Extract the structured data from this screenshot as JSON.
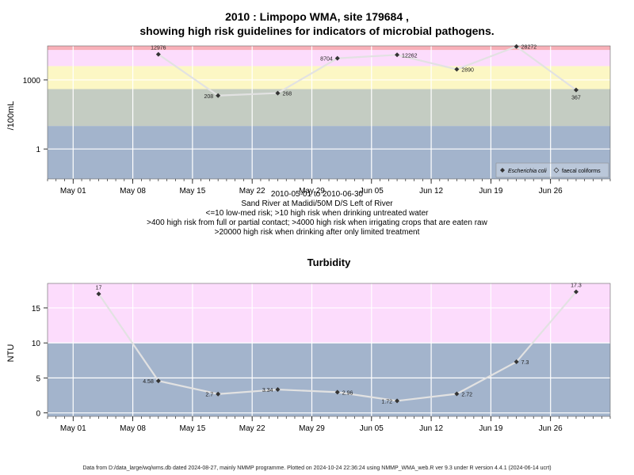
{
  "titles": {
    "line1": "2010 : Limpopo WMA, site 179684 ,",
    "line2": "showing high risk guidelines for indicators of microbial pathogens."
  },
  "subtitle": [
    "2010-05-01 to 2010-06-30",
    "Sand River at Madidi/50M D/S Left of River",
    "<=10 low-med risk; >10 high risk when drinking untreated water",
    ">400 high risk from full or partial contact; >4000 high risk when irrigating crops that are eaten raw",
    ">20000 high risk when drinking after only limited treatment"
  ],
  "footer": "Data from D:/data_large/wq/wms.db dated 2024-08-27, mainly NMMP programme. Plotted on 2024-10-24 22:36:24 using NMMP_WMA_web.R ver 9.3 under R version 4.4.1 (2024-06-14 ucrt)",
  "colors": {
    "lowband": "#a3b4cc",
    "greenband": "#c4ccc2",
    "yellowband": "#fcf7c4",
    "pinkband": "#fcdcfc",
    "redband": "#f8b0b8",
    "line": "#e2e2e2",
    "point": "#333333",
    "grid": "#ffffff"
  },
  "chart_data": [
    {
      "type": "line",
      "title": "",
      "ylabel": "/100mL",
      "yscale": "log10",
      "ylim": [
        0.05,
        30000
      ],
      "xlim": [
        "2010-04-28",
        "2010-07-03"
      ],
      "x_ticks": [
        "May 01",
        "May 08",
        "May 15",
        "May 22",
        "May 29",
        "Jun 05",
        "Jun 12",
        "Jun 19",
        "Jun 26"
      ],
      "x_tick_dates": [
        "2010-05-01",
        "2010-05-08",
        "2010-05-15",
        "2010-05-22",
        "2010-05-29",
        "2010-06-05",
        "2010-06-12",
        "2010-06-19",
        "2010-06-26"
      ],
      "y_ticks": [
        1,
        1000
      ],
      "y_tick_labels": [
        "1",
        "1000"
      ],
      "risk_bands": [
        {
          "from": 0.05,
          "to": 10,
          "color": "#a3b4cc"
        },
        {
          "from": 10,
          "to": 400,
          "color": "#c4ccc2"
        },
        {
          "from": 400,
          "to": 4000,
          "color": "#fcf7c4"
        },
        {
          "from": 4000,
          "to": 20000,
          "color": "#fcdcfc"
        },
        {
          "from": 20000,
          "to": 30000,
          "color": "#f8b0b8"
        }
      ],
      "legend": {
        "position": "bottom-right",
        "entries": [
          "Escherichia coli",
          "faecal coliforms"
        ]
      },
      "series": [
        {
          "name": "Escherichia coli",
          "x": [
            "2010-05-11",
            "2010-05-18",
            "2010-05-25",
            "2010-06-01",
            "2010-06-08",
            "2010-06-15",
            "2010-06-22",
            "2010-06-29"
          ],
          "y": [
            12976,
            208,
            268,
            8704,
            12262,
            2890,
            28272,
            367
          ],
          "labels": [
            "12976",
            "208",
            "268",
            "8704",
            "12262",
            "2890",
            "28272",
            "367"
          ]
        }
      ]
    },
    {
      "type": "line",
      "title": "Turbidity",
      "ylabel": "NTU",
      "ylim": [
        -0.5,
        18.5
      ],
      "xlim": [
        "2010-04-28",
        "2010-07-03"
      ],
      "x_ticks": [
        "May 01",
        "May 08",
        "May 15",
        "May 22",
        "May 29",
        "Jun 05",
        "Jun 12",
        "Jun 19",
        "Jun 26"
      ],
      "x_tick_dates": [
        "2010-05-01",
        "2010-05-08",
        "2010-05-15",
        "2010-05-22",
        "2010-05-29",
        "2010-06-05",
        "2010-06-12",
        "2010-06-19",
        "2010-06-26"
      ],
      "y_ticks": [
        0,
        5,
        10,
        15
      ],
      "y_tick_labels": [
        "0",
        "5",
        "10",
        "15"
      ],
      "risk_bands": [
        {
          "from": -0.5,
          "to": 10,
          "color": "#a3b4cc"
        },
        {
          "from": 10,
          "to": 18.5,
          "color": "#fcdcfc"
        }
      ],
      "series": [
        {
          "name": "Turbidity",
          "x": [
            "2010-05-04",
            "2010-05-11",
            "2010-05-18",
            "2010-05-25",
            "2010-06-01",
            "2010-06-08",
            "2010-06-15",
            "2010-06-22",
            "2010-06-29"
          ],
          "y": [
            17,
            4.58,
            2.7,
            3.34,
            2.96,
            1.72,
            2.72,
            7.3,
            17.3
          ],
          "labels": [
            "17",
            "4.58",
            "2.7",
            "3.34",
            "2.96",
            "1.72",
            "2.72",
            "7.3",
            "17.3"
          ]
        }
      ]
    }
  ]
}
